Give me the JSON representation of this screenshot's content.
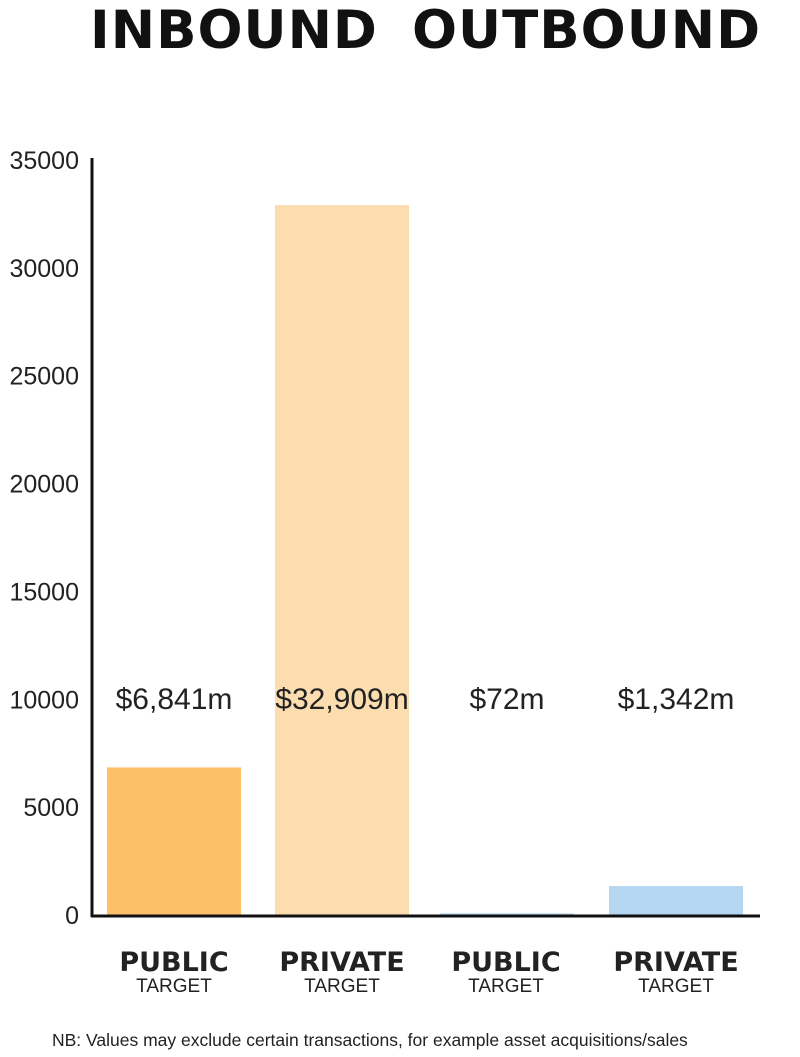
{
  "headings": {
    "inbound": "INBOUND",
    "outbound": "OUTBOUND"
  },
  "note": "NB: Values may exclude certain transactions, for example asset acquisitions/sales",
  "chart_data": {
    "type": "bar",
    "categories": [
      "PUBLIC TARGET",
      "PRIVATE TARGET",
      "PUBLIC TARGET",
      "PRIVATE TARGET"
    ],
    "category_labels": [
      {
        "main": "PUBLIC",
        "sub": "TARGET"
      },
      {
        "main": "PRIVATE",
        "sub": "TARGET"
      },
      {
        "main": "PUBLIC",
        "sub": "TARGET"
      },
      {
        "main": "PRIVATE",
        "sub": "TARGET"
      }
    ],
    "groups": [
      "INBOUND",
      "INBOUND",
      "OUTBOUND",
      "OUTBOUND"
    ],
    "values": [
      6841,
      32909,
      72,
      1342
    ],
    "data_labels": [
      "$6,841m",
      "$32,909m",
      "$72m",
      "$1,342m"
    ],
    "colors": [
      "#fdbf67",
      "#fcddb0",
      "#b4d6f0",
      "#b4d6f0"
    ],
    "yticks": [
      0,
      5000,
      10000,
      15000,
      20000,
      25000,
      30000,
      35000
    ],
    "ylim": [
      0,
      35000
    ],
    "grid": false,
    "legend": "none"
  }
}
